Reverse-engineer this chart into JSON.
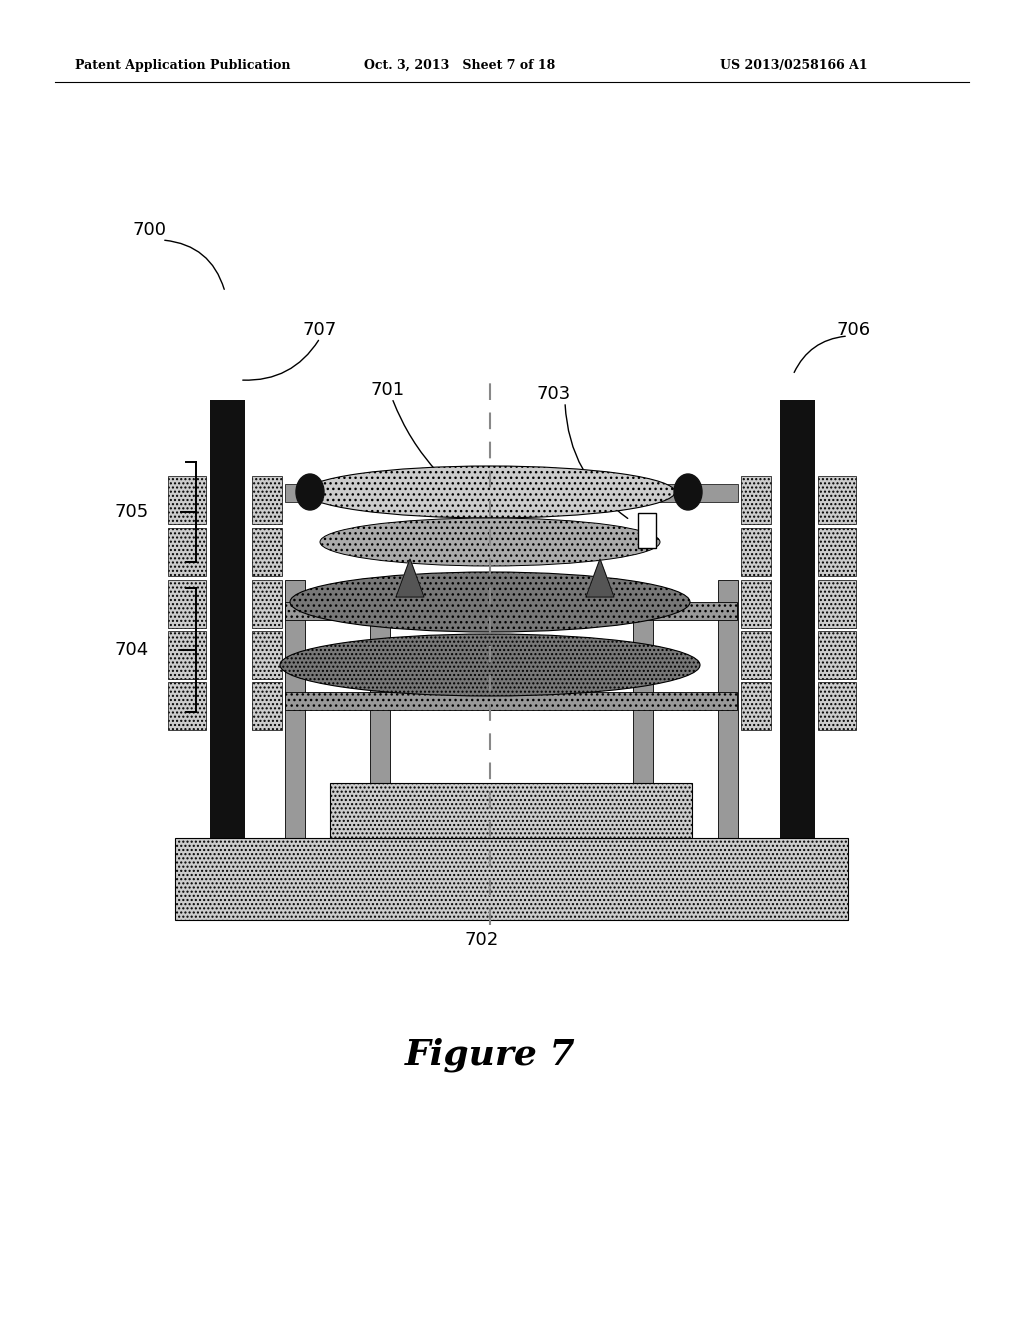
{
  "title": "Figure 7",
  "header_left": "Patent Application Publication",
  "header_mid": "Oct. 3, 2013   Sheet 7 of 18",
  "header_right": "US 2013/0258166 A1",
  "bg_color": "#ffffff",
  "dk": "#111111",
  "md": "#777777",
  "md2": "#999999",
  "lt": "#aaaaaa",
  "llt": "#cccccc",
  "lllt": "#dddddd"
}
